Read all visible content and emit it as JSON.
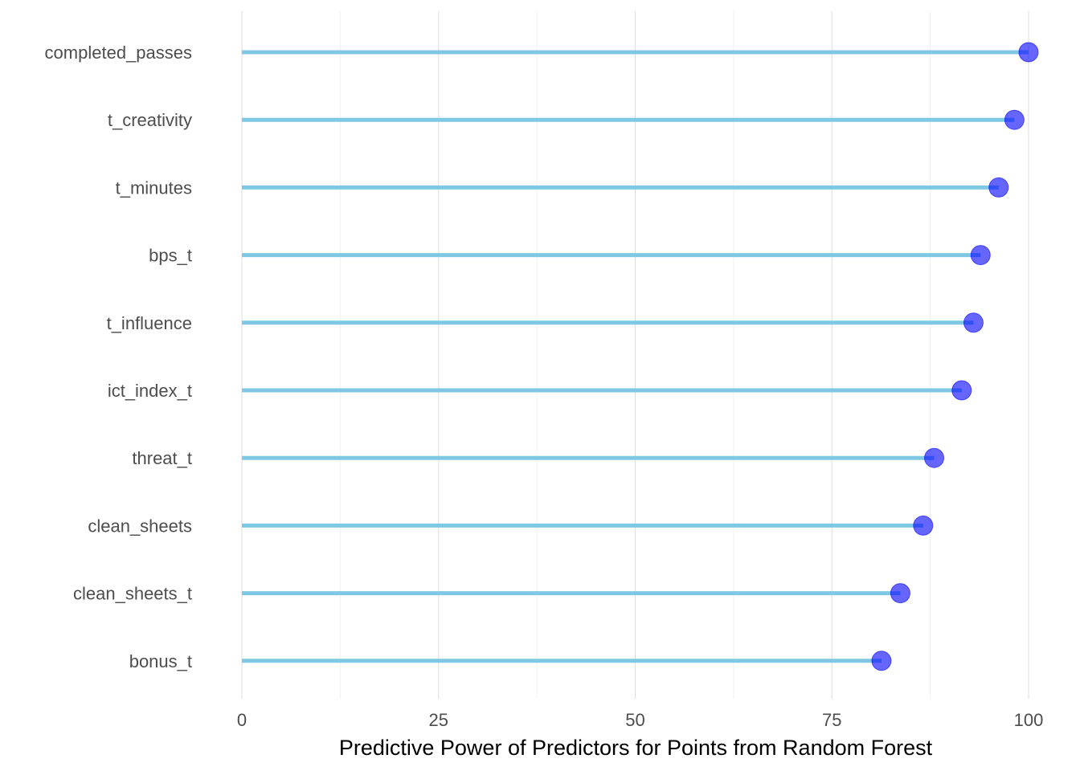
{
  "chart_data": {
    "type": "lollipop",
    "title": "",
    "xlabel": "Predictive Power of Predictors for Points from Random Forest",
    "ylabel": "",
    "xlim": [
      0,
      100
    ],
    "x_ticks": [
      0,
      25,
      50,
      75,
      100
    ],
    "grid": true,
    "categories": [
      "completed_passes",
      "t_creativity",
      "t_minutes",
      "bps_t",
      "t_influence",
      "ict_index_t",
      "threat_t",
      "clean_sheets",
      "clean_sheets_t",
      "bonus_t"
    ],
    "values": [
      100,
      98.2,
      96.2,
      93.9,
      93.0,
      91.5,
      88.0,
      86.6,
      83.7,
      81.3
    ],
    "colors": {
      "stem": "#7ec8e3",
      "point": "#0000ff",
      "grid": "#e5e5e5"
    }
  }
}
